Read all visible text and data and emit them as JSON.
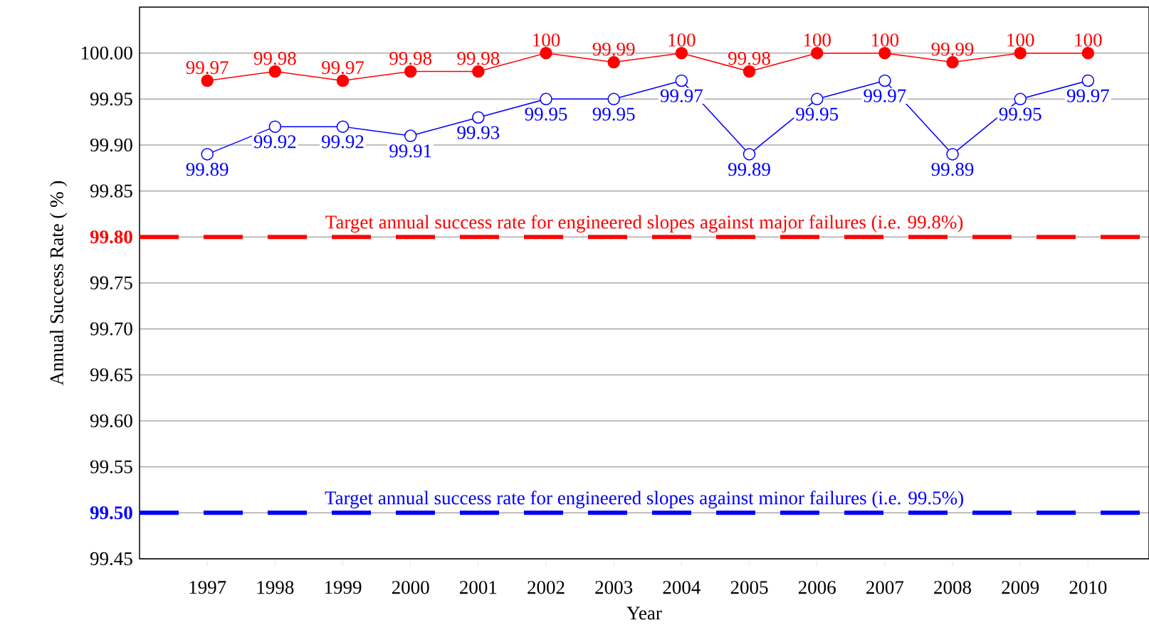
{
  "chart_data": {
    "type": "line",
    "xlabel": "Year",
    "ylabel": "Annual Success Rate ( % )",
    "categories": [
      "1997",
      "1998",
      "1999",
      "2000",
      "2001",
      "2002",
      "2003",
      "2004",
      "2005",
      "2006",
      "2007",
      "2008",
      "2009",
      "2010"
    ],
    "series": [
      {
        "color": "#ff0000",
        "marker": "circle",
        "values": [
          99.97,
          99.98,
          99.97,
          99.98,
          99.98,
          100,
          99.99,
          100,
          99.98,
          100,
          100,
          99.99,
          100,
          100
        ],
        "value_labels": [
          "99.97",
          "99.98",
          "99.97",
          "99.98",
          "99.98",
          "100",
          "99.99",
          "100",
          "99.98",
          "100",
          "100",
          "99.99",
          "100",
          "100"
        ]
      },
      {
        "color": "#0000ff",
        "marker": "circle",
        "values": [
          99.89,
          99.92,
          99.92,
          99.91,
          99.93,
          99.95,
          99.95,
          99.97,
          99.89,
          99.95,
          99.97,
          99.89,
          99.95,
          99.97
        ],
        "value_labels": [
          "99.89",
          "99.92",
          "99.92",
          "99.91",
          "99.93",
          "99.95",
          "99.95",
          "99.97",
          "99.89",
          "99.95",
          "99.97",
          "99.89",
          "99.95",
          "99.97"
        ]
      }
    ],
    "ylim": [
      99.45,
      100.05
    ],
    "yticks": [
      {
        "value": 99.45,
        "label": "99.45"
      },
      {
        "value": 99.5,
        "label": "99.50"
      },
      {
        "value": 99.55,
        "label": "99.55"
      },
      {
        "value": 99.6,
        "label": "99.60"
      },
      {
        "value": 99.65,
        "label": "99.65"
      },
      {
        "value": 99.7,
        "label": "99.70"
      },
      {
        "value": 99.75,
        "label": "99.75"
      },
      {
        "value": 99.8,
        "label": "99.80"
      },
      {
        "value": 99.85,
        "label": "99.85"
      },
      {
        "value": 99.9,
        "label": "99.90"
      },
      {
        "value": 99.95,
        "label": "99.95"
      },
      {
        "value": 100,
        "label": "100.00"
      }
    ],
    "ref_lines": [
      {
        "axis": "y",
        "value": 99.8,
        "label": "Target annual success rate for engineered slopes against major failures (i.e. 99.8%)",
        "color": "#ff0000",
        "line_style": "dashed"
      },
      {
        "axis": "y",
        "value": 99.5,
        "label": "Target annual success rate for engineered slopes against minor failures (i.e. 99.5%)",
        "color": "#0000ff",
        "line_style": "dashed"
      }
    ],
    "grid": "y",
    "line_style": "solid"
  }
}
